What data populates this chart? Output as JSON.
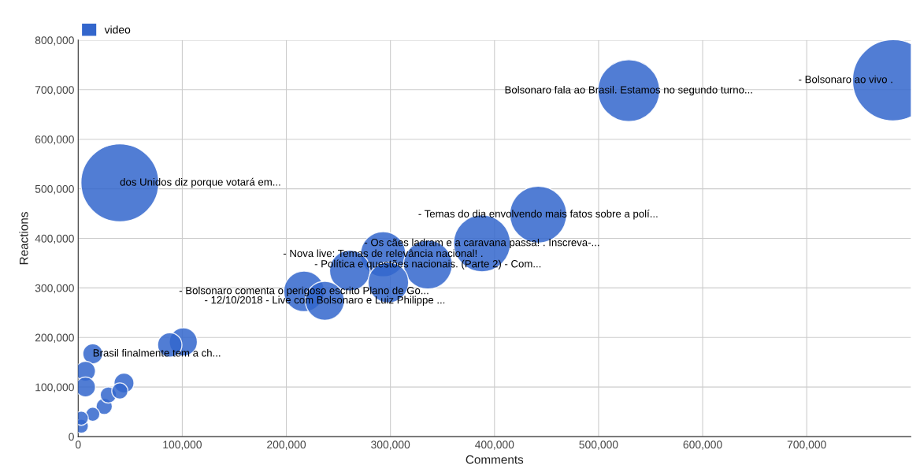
{
  "chart_data": {
    "type": "bubble",
    "xlabel": "Comments",
    "ylabel": "Reactions",
    "xlim": [
      0,
      800000
    ],
    "xticks": [
      {
        "value": 0,
        "label": "0"
      },
      {
        "value": 100000,
        "label": "100,000"
      },
      {
        "value": 200000,
        "label": "200,000"
      },
      {
        "value": 300000,
        "label": "300,000"
      },
      {
        "value": 400000,
        "label": "400,000"
      },
      {
        "value": 500000,
        "label": "500,000"
      },
      {
        "value": 600000,
        "label": "600,000"
      },
      {
        "value": 700000,
        "label": "700,000"
      }
    ],
    "ylim": [
      0,
      800000
    ],
    "yticks": [
      {
        "value": 0,
        "label": "0"
      },
      {
        "value": 100000,
        "label": "100,000"
      },
      {
        "value": 200000,
        "label": "200,000"
      },
      {
        "value": 300000,
        "label": "300,000"
      },
      {
        "value": 400000,
        "label": "400,000"
      },
      {
        "value": 500000,
        "label": "500,000"
      },
      {
        "value": 600000,
        "label": "600,000"
      },
      {
        "value": 700000,
        "label": "700,000"
      },
      {
        "value": 800000,
        "label": "800,000"
      }
    ],
    "grid": true,
    "legend": "top left",
    "series": [
      {
        "name": "video",
        "color": "#3366cc",
        "x": [
          783000,
          529000,
          40000,
          442000,
          388000,
          293000,
          336000,
          261000,
          298000,
          217000,
          237000,
          101000,
          88000,
          14000,
          7000,
          7000,
          44000,
          25000,
          14000,
          3000,
          3000,
          29000,
          40000
        ],
        "values": [
          719000,
          698000,
          512000,
          448000,
          390000,
          368000,
          347000,
          335000,
          311000,
          293000,
          274000,
          191000,
          185000,
          167000,
          132000,
          100000,
          108000,
          61000,
          45000,
          21000,
          37000,
          84000,
          92000
        ],
        "sizes": [
          1,
          0.58,
          0.92,
          0.49,
          0.49,
          0.31,
          0.36,
          0.25,
          0.25,
          0.25,
          0.23,
          0.12,
          0.09,
          0.06,
          0.06,
          0.06,
          0.06,
          0.04,
          0.03,
          0.03,
          0.03,
          0.04,
          0.04
        ]
      }
    ],
    "annotations": [
      {
        "text": "- Bolsonaro ao vivo .",
        "x": 783000,
        "y": 719000
      },
      {
        "text": "Bolsonaro fala ao Brasil. Estamos no segundo turno...",
        "x": 529000,
        "y": 698000
      },
      {
        "text": "dos Unidos diz porque votará em...",
        "x": 40000,
        "y": 512000
      },
      {
        "text": "- Temas do dia envolvendo mais fatos sobre a polí...",
        "x": 442000,
        "y": 448000
      },
      {
        "text": "- Os cães ladram e a caravana passa! . Inscreva-...",
        "x": 388000,
        "y": 390000
      },
      {
        "text": "- Nova live: Temas de relevância nacional! .",
        "x": 293000,
        "y": 368000
      },
      {
        "text": "- Política e questões nacionais. (Parte 2) - Com...",
        "x": 336000,
        "y": 347000
      },
      {
        "text": "- Bolsonaro comenta o perigoso escrito Plano de Go...",
        "x": 217000,
        "y": 293000
      },
      {
        "text": "- 12/10/2018 - Live com Bolsonaro e Luiz Philippe ...",
        "x": 237000,
        "y": 274000
      },
      {
        "text": "Brasil finalmente tem a ch...",
        "x": 14000,
        "y": 167000
      }
    ]
  }
}
